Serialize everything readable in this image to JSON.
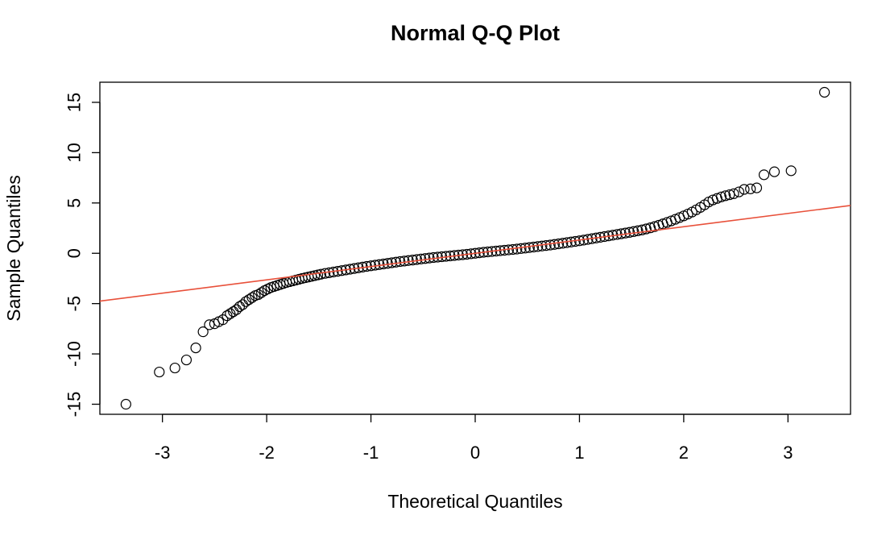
{
  "chart_data": {
    "type": "scatter",
    "title": "Normal Q-Q Plot",
    "xlabel": "Theoretical Quantiles",
    "ylabel": "Sample Quantiles",
    "xlim": [
      -3.6,
      3.6
    ],
    "ylim": [
      -16.0,
      17.0
    ],
    "x_ticks": [
      -3,
      -2,
      -1,
      0,
      1,
      2,
      3
    ],
    "y_ticks": [
      -15,
      -10,
      -5,
      0,
      5,
      10,
      15
    ],
    "reference_line": {
      "slope": 1.32,
      "intercept": 0.0,
      "color": "#e8503a"
    },
    "point_color": "#000000",
    "grid": false,
    "points": [
      [
        -3.35,
        -15.0
      ],
      [
        -3.03,
        -11.8
      ],
      [
        -2.88,
        -11.4
      ],
      [
        -2.77,
        -10.6
      ],
      [
        -2.68,
        -9.4
      ],
      [
        -2.61,
        -7.8
      ],
      [
        -2.55,
        -7.1
      ],
      [
        -2.5,
        -7.0
      ],
      [
        -2.46,
        -6.8
      ],
      [
        -2.42,
        -6.6
      ],
      [
        -2.38,
        -6.2
      ],
      [
        -2.35,
        -6.0
      ],
      [
        -2.32,
        -5.8
      ],
      [
        -2.29,
        -5.6
      ],
      [
        -2.26,
        -5.3
      ],
      [
        -2.23,
        -5.1
      ],
      [
        -2.2,
        -4.8
      ],
      [
        -2.17,
        -4.6
      ],
      [
        -2.14,
        -4.4
      ],
      [
        -2.11,
        -4.2
      ],
      [
        -2.08,
        -4.1
      ],
      [
        -2.05,
        -3.9
      ],
      [
        -2.02,
        -3.7
      ],
      [
        -1.99,
        -3.55
      ],
      [
        -1.96,
        -3.4
      ],
      [
        -1.93,
        -3.3
      ],
      [
        -1.9,
        -3.2
      ],
      [
        -1.87,
        -3.1
      ],
      [
        -1.84,
        -3.0
      ],
      [
        -1.81,
        -2.9
      ],
      [
        -1.78,
        -2.82
      ],
      [
        -1.75,
        -2.74
      ],
      [
        -1.72,
        -2.66
      ],
      [
        -1.69,
        -2.58
      ],
      [
        -1.66,
        -2.5
      ],
      [
        -1.63,
        -2.43
      ],
      [
        -1.6,
        -2.36
      ],
      [
        -1.57,
        -2.29
      ],
      [
        -1.54,
        -2.22
      ],
      [
        -1.51,
        -2.15
      ],
      [
        -1.48,
        -2.08
      ],
      [
        -1.44,
        -2.0
      ],
      [
        -1.4,
        -1.93
      ],
      [
        -1.36,
        -1.86
      ],
      [
        -1.32,
        -1.79
      ],
      [
        -1.28,
        -1.72
      ],
      [
        -1.24,
        -1.65
      ],
      [
        -1.2,
        -1.58
      ],
      [
        -1.16,
        -1.51
      ],
      [
        -1.12,
        -1.44
      ],
      [
        -1.08,
        -1.37
      ],
      [
        -1.04,
        -1.3
      ],
      [
        -1.0,
        -1.24
      ],
      [
        -0.96,
        -1.18
      ],
      [
        -0.92,
        -1.12
      ],
      [
        -0.88,
        -1.06
      ],
      [
        -0.84,
        -1.0
      ],
      [
        -0.8,
        -0.94
      ],
      [
        -0.76,
        -0.88
      ],
      [
        -0.72,
        -0.82
      ],
      [
        -0.68,
        -0.77
      ],
      [
        -0.64,
        -0.72
      ],
      [
        -0.6,
        -0.67
      ],
      [
        -0.56,
        -0.62
      ],
      [
        -0.52,
        -0.57
      ],
      [
        -0.48,
        -0.52
      ],
      [
        -0.44,
        -0.47
      ],
      [
        -0.4,
        -0.42
      ],
      [
        -0.36,
        -0.38
      ],
      [
        -0.32,
        -0.34
      ],
      [
        -0.28,
        -0.3
      ],
      [
        -0.24,
        -0.26
      ],
      [
        -0.2,
        -0.22
      ],
      [
        -0.16,
        -0.18
      ],
      [
        -0.12,
        -0.14
      ],
      [
        -0.08,
        -0.1
      ],
      [
        -0.04,
        -0.05
      ],
      [
        0.0,
        0.0
      ],
      [
        0.04,
        0.05
      ],
      [
        0.08,
        0.1
      ],
      [
        0.12,
        0.14
      ],
      [
        0.16,
        0.18
      ],
      [
        0.2,
        0.22
      ],
      [
        0.24,
        0.26
      ],
      [
        0.28,
        0.3
      ],
      [
        0.32,
        0.34
      ],
      [
        0.36,
        0.38
      ],
      [
        0.4,
        0.42
      ],
      [
        0.44,
        0.47
      ],
      [
        0.48,
        0.52
      ],
      [
        0.52,
        0.57
      ],
      [
        0.56,
        0.62
      ],
      [
        0.6,
        0.67
      ],
      [
        0.64,
        0.72
      ],
      [
        0.68,
        0.77
      ],
      [
        0.72,
        0.82
      ],
      [
        0.76,
        0.88
      ],
      [
        0.8,
        0.94
      ],
      [
        0.84,
        1.0
      ],
      [
        0.88,
        1.06
      ],
      [
        0.92,
        1.12
      ],
      [
        0.96,
        1.18
      ],
      [
        1.0,
        1.24
      ],
      [
        1.04,
        1.31
      ],
      [
        1.08,
        1.38
      ],
      [
        1.12,
        1.45
      ],
      [
        1.16,
        1.52
      ],
      [
        1.2,
        1.59
      ],
      [
        1.24,
        1.66
      ],
      [
        1.28,
        1.73
      ],
      [
        1.32,
        1.8
      ],
      [
        1.36,
        1.87
      ],
      [
        1.4,
        1.94
      ],
      [
        1.44,
        2.01
      ],
      [
        1.48,
        2.08
      ],
      [
        1.52,
        2.16
      ],
      [
        1.56,
        2.24
      ],
      [
        1.6,
        2.32
      ],
      [
        1.64,
        2.42
      ],
      [
        1.68,
        2.53
      ],
      [
        1.72,
        2.65
      ],
      [
        1.76,
        2.78
      ],
      [
        1.8,
        2.92
      ],
      [
        1.84,
        3.07
      ],
      [
        1.88,
        3.22
      ],
      [
        1.92,
        3.38
      ],
      [
        1.96,
        3.55
      ],
      [
        2.0,
        3.72
      ],
      [
        2.04,
        3.9
      ],
      [
        2.08,
        4.1
      ],
      [
        2.12,
        4.32
      ],
      [
        2.16,
        4.56
      ],
      [
        2.2,
        4.82
      ],
      [
        2.24,
        5.1
      ],
      [
        2.28,
        5.3
      ],
      [
        2.32,
        5.45
      ],
      [
        2.36,
        5.6
      ],
      [
        2.4,
        5.72
      ],
      [
        2.44,
        5.82
      ],
      [
        2.48,
        5.92
      ],
      [
        2.53,
        6.1
      ],
      [
        2.58,
        6.35
      ],
      [
        2.64,
        6.4
      ],
      [
        2.7,
        6.5
      ],
      [
        2.77,
        7.8
      ],
      [
        2.87,
        8.1
      ],
      [
        3.03,
        8.2
      ],
      [
        3.35,
        16.0
      ]
    ]
  }
}
